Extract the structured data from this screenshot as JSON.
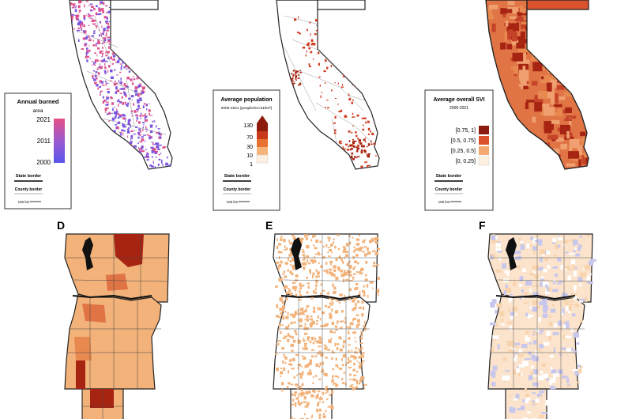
{
  "panel_letters": {
    "d": "D",
    "e": "E",
    "f": "F"
  },
  "panel_a": {
    "legend_title_line1": "Annual burned",
    "legend_title_line2": "area",
    "gradient_ticks": [
      "2021",
      "2011",
      "2000"
    ],
    "gradient_colors": [
      "#e44f86",
      "#9b5ad0",
      "#5a55ea"
    ],
    "state_border_label": "State border",
    "county_border_label": "County border",
    "scale_label": "100 km"
  },
  "panel_b": {
    "legend_title_line1": "Average population",
    "legend_title_line2": "2000-2021 (people/31×31km²)",
    "classes": [
      {
        "label": "130",
        "color": "#8e1a0c"
      },
      {
        "label": "70",
        "color": "#c83a1a"
      },
      {
        "label": "30",
        "color": "#e8722f"
      },
      {
        "label": "10",
        "color": "#f6b47a"
      },
      {
        "label": "1",
        "color": "#fdf0de"
      }
    ],
    "state_border_label": "State border",
    "county_border_label": "County border",
    "scale_label": "100 km"
  },
  "panel_c": {
    "legend_title_line1": "Average overall SVI",
    "legend_title_line2": "2000-2021",
    "classes": [
      {
        "label": "[0.75, 1]",
        "color": "#8c1b12"
      },
      {
        "label": "[0.5, 0.75]",
        "color": "#d9512d"
      },
      {
        "label": "[0.25, 0.5]",
        "color": "#f4a872"
      },
      {
        "label": "[0, 0.25]",
        "color": "#fdf0e0"
      }
    ],
    "state_border_label": "State border",
    "county_border_label": "County border",
    "scale_label": "100 km"
  },
  "colors": {
    "burn_pink": "#dd4f8d",
    "burn_purple": "#7a55e0",
    "pop_red": "#cf3b1e",
    "svi_base": "#e07445",
    "svi_dark": "#a72412",
    "orange_fill": "#f2b27a",
    "land_tan": "#f8d4ad",
    "blue_tint": "#c7c7ee",
    "water_black": "#111111"
  }
}
